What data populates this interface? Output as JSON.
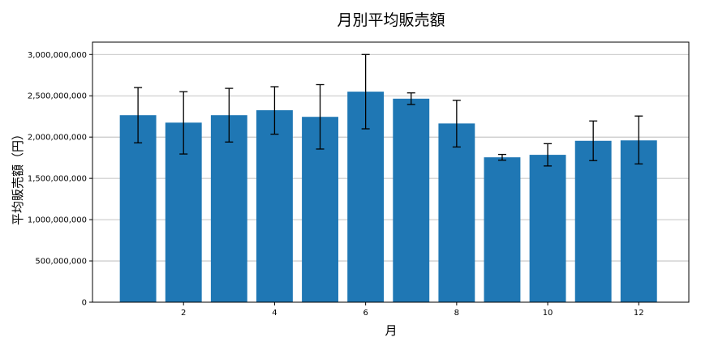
{
  "chart_data": {
    "type": "bar",
    "title": "月別平均販売額",
    "xlabel": "月",
    "ylabel": "平均販売額（円）",
    "x": [
      1,
      2,
      3,
      4,
      5,
      6,
      7,
      8,
      9,
      10,
      11,
      12
    ],
    "values": [
      2265000000,
      2175000000,
      2265000000,
      2325000000,
      2245000000,
      2550000000,
      2465000000,
      2165000000,
      1755000000,
      1785000000,
      1955000000,
      1960000000
    ],
    "error_low": [
      1930000000,
      1795000000,
      1940000000,
      2035000000,
      1855000000,
      2100000000,
      2395000000,
      1880000000,
      1720000000,
      1650000000,
      1715000000,
      1675000000
    ],
    "error_high": [
      2600000000,
      2550000000,
      2590000000,
      2610000000,
      2635000000,
      3000000000,
      2535000000,
      2445000000,
      1790000000,
      1920000000,
      2195000000,
      2255000000
    ],
    "x_ticks": [
      2,
      4,
      6,
      8,
      10,
      12
    ],
    "x_tick_labels": [
      "2",
      "4",
      "6",
      "8",
      "10",
      "12"
    ],
    "xlim": [
      0,
      13.1
    ],
    "y_ticks": [
      0,
      500000000,
      1000000000,
      1500000000,
      2000000000,
      2500000000,
      3000000000
    ],
    "y_tick_labels": [
      "0",
      "500,000,000",
      "1,000,000,000",
      "1,500,000,000",
      "2,000,000,000",
      "2,500,000,000",
      "3,000,000,000"
    ],
    "ylim": [
      0,
      3150000000
    ],
    "grid": "horizontal",
    "colors": {
      "bar": "#1f77b4",
      "error": "#000000",
      "grid": "#b0b0b0",
      "axis": "#000000"
    }
  }
}
